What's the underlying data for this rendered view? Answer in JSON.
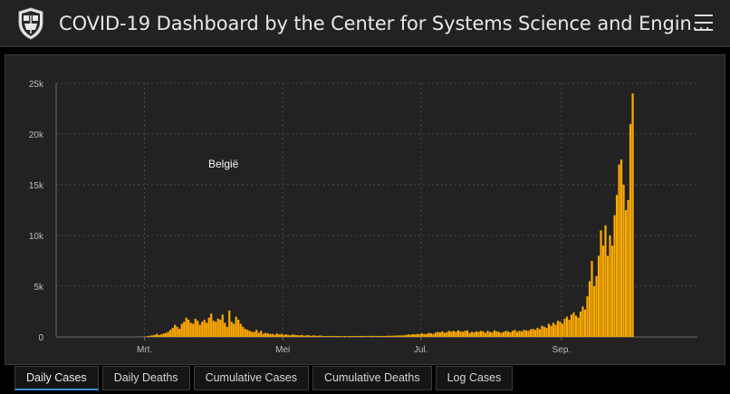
{
  "header": {
    "title": "COVID-19 Dashboard by the Center for Systems Science and Engin…",
    "logo_icon": "university-shield-icon",
    "menu_icon": "hamburger-menu-icon"
  },
  "tabs": [
    {
      "label": "Daily Cases",
      "active": true
    },
    {
      "label": "Daily Deaths",
      "active": false
    },
    {
      "label": "Cumulative Cases",
      "active": false
    },
    {
      "label": "Cumulative Deaths",
      "active": false
    },
    {
      "label": "Log Cases",
      "active": false
    }
  ],
  "colors": {
    "bar": "#ffab00",
    "background": "#222222",
    "active_tab": "#3d8fd6"
  },
  "chart_data": {
    "type": "bar",
    "country_label": "België",
    "y_ticks": [
      "0",
      "5k",
      "10k",
      "15k",
      "20k",
      "25k"
    ],
    "ylim": [
      0,
      25000
    ],
    "x_ticks": [
      {
        "label": "Mrt.",
        "day": 39
      },
      {
        "label": "Mei",
        "day": 100
      },
      {
        "label": "Jul.",
        "day": 161
      },
      {
        "label": "Sep.",
        "day": 223
      }
    ],
    "x_range_days": [
      0,
      283
    ],
    "start_date": "2020-01-22",
    "grid": true,
    "daily_cases_by_week": [
      [
        0,
        0,
        0,
        0,
        0,
        0,
        0
      ],
      [
        0,
        0,
        0,
        0,
        0,
        0,
        0
      ],
      [
        0,
        0,
        0,
        0,
        0,
        0,
        0
      ],
      [
        0,
        0,
        0,
        0,
        0,
        0,
        0
      ],
      [
        0,
        0,
        0,
        0,
        0,
        0,
        0
      ],
      [
        2,
        5,
        10,
        20,
        40,
        80,
        120
      ],
      [
        150,
        200,
        300,
        180,
        250,
        350,
        400
      ],
      [
        500,
        700,
        900,
        1200,
        1000,
        800,
        1300
      ],
      [
        1500,
        1900,
        1700,
        1400,
        1300,
        1800,
        1600
      ],
      [
        1200,
        1500,
        1700,
        1400,
        1900,
        2300,
        1600
      ],
      [
        1500,
        1800,
        1700,
        2200,
        1400,
        1000,
        2600
      ],
      [
        1500,
        1300,
        2000,
        1700,
        1300,
        1000,
        800
      ],
      [
        700,
        600,
        500,
        500,
        700,
        400,
        600
      ],
      [
        300,
        400,
        350,
        300,
        300,
        200,
        350
      ],
      [
        250,
        300,
        200,
        250,
        200,
        150,
        250
      ],
      [
        200,
        180,
        150,
        200,
        120,
        150,
        180
      ],
      [
        100,
        150,
        120,
        100,
        150,
        100,
        90
      ],
      [
        80,
        100,
        90,
        80,
        100,
        90,
        70
      ],
      [
        80,
        90,
        70,
        90,
        80,
        100,
        90
      ],
      [
        80,
        100,
        90,
        100,
        70,
        110,
        100
      ],
      [
        100,
        90,
        80,
        110,
        90,
        100,
        120
      ],
      [
        110,
        120,
        130,
        150,
        140,
        160,
        150
      ],
      [
        200,
        250,
        220,
        280,
        250,
        300,
        270
      ],
      [
        350,
        300,
        280,
        400,
        350,
        300,
        420
      ],
      [
        500,
        450,
        550,
        400,
        480,
        600,
        530
      ],
      [
        600,
        500,
        650,
        550,
        500,
        600,
        650
      ],
      [
        400,
        500,
        450,
        550,
        500,
        600,
        550
      ],
      [
        400,
        600,
        500,
        450,
        650,
        550,
        500
      ],
      [
        400,
        500,
        600,
        550,
        450,
        600,
        700
      ],
      [
        500,
        600,
        550,
        700,
        650,
        600,
        750
      ],
      [
        800,
        700,
        900,
        750,
        1100,
        1000,
        900
      ],
      [
        1300,
        1100,
        1400,
        1200,
        1600,
        1500,
        1300
      ],
      [
        1800,
        2000,
        1700,
        2200,
        2400,
        2100,
        1900
      ],
      [
        2500,
        3000,
        2700,
        4000,
        5500,
        7500,
        5000
      ],
      [
        6000,
        8000,
        10500,
        9000,
        11000,
        8000,
        10000
      ],
      [
        9000,
        12000,
        14000,
        17000,
        17500,
        15000,
        12500
      ],
      [
        13500,
        21000,
        24000
      ]
    ]
  }
}
